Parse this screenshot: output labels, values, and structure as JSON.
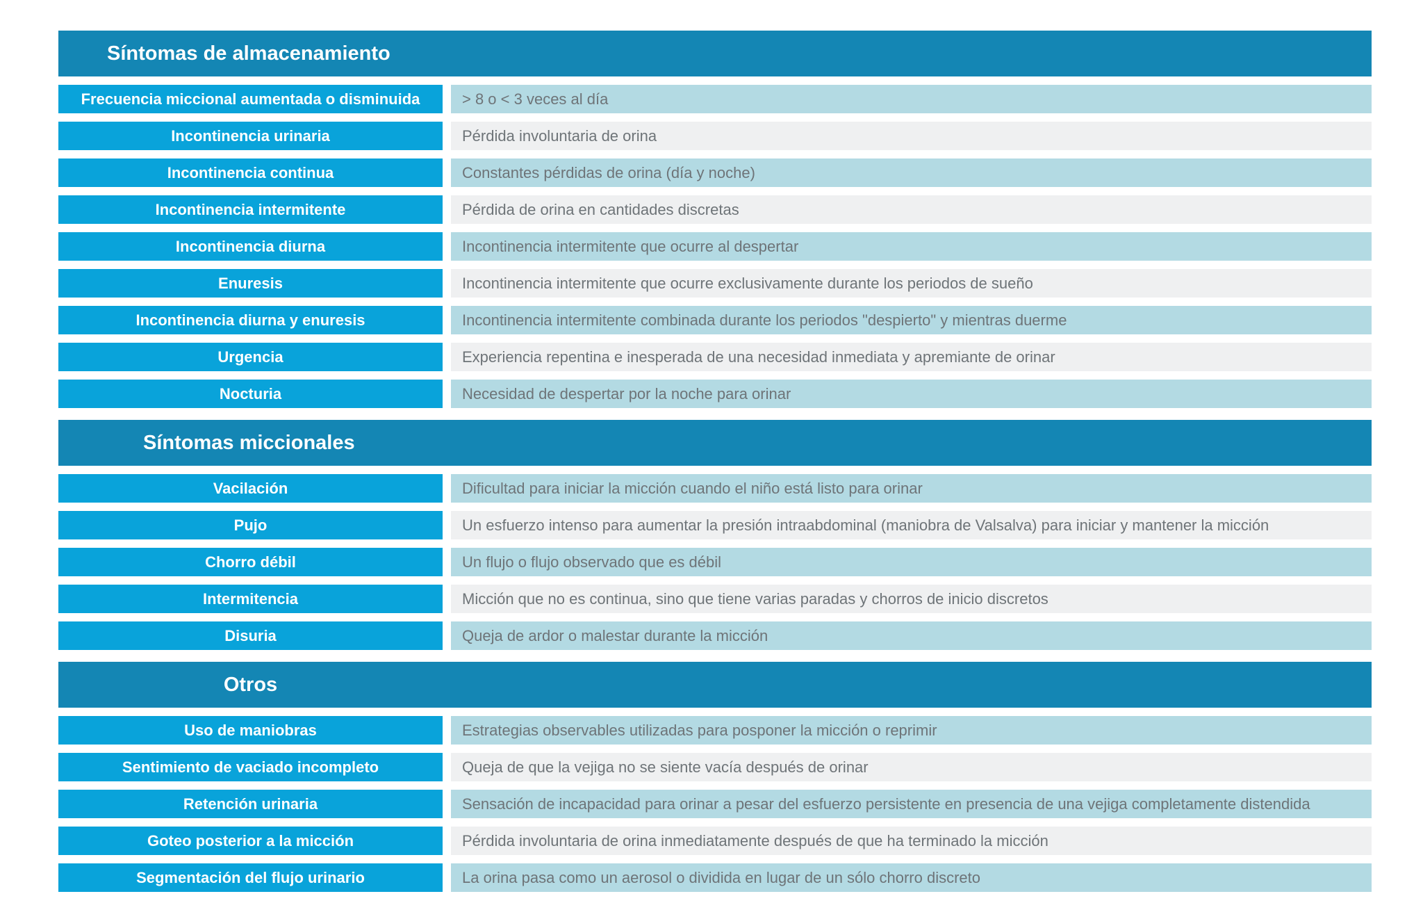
{
  "sections": [
    {
      "title": "Síntomas de almacenamiento",
      "rows": [
        {
          "term": "Frecuencia miccional aumentada o disminuida",
          "definition": "> 8 o < 3 veces al día"
        },
        {
          "term": "Incontinencia urinaria",
          "definition": "Pérdida involuntaria de orina"
        },
        {
          "term": "Incontinencia continua",
          "definition": "Constantes pérdidas de orina (día y noche)"
        },
        {
          "term": "Incontinencia intermitente",
          "definition": "Pérdida de orina en cantidades discretas"
        },
        {
          "term": "Incontinencia diurna",
          "definition": "Incontinencia intermitente que ocurre al despertar"
        },
        {
          "term": "Enuresis",
          "definition": "Incontinencia intermitente que ocurre exclusivamente durante los periodos de sueño"
        },
        {
          "term": "Incontinencia diurna y enuresis",
          "definition": "Incontinencia intermitente combinada durante los periodos \"despierto\" y mientras duerme"
        },
        {
          "term": "Urgencia",
          "definition": "Experiencia repentina e inesperada de una necesidad inmediata y apremiante de orinar"
        },
        {
          "term": "Nocturia",
          "definition": "Necesidad de despertar por la noche para orinar"
        }
      ]
    },
    {
      "title": "Síntomas miccionales",
      "rows": [
        {
          "term": "Vacilación",
          "definition": "Dificultad para iniciar la micción cuando el niño está listo para orinar"
        },
        {
          "term": "Pujo",
          "definition": "Un esfuerzo intenso para aumentar la presión intraabdominal (maniobra de Valsalva) para iniciar y mantener la micción"
        },
        {
          "term": "Chorro débil",
          "definition": "Un flujo o flujo observado que es débil"
        },
        {
          "term": "Intermitencia",
          "definition": "Micción que no es continua, sino que tiene varias paradas y chorros de inicio discretos"
        },
        {
          "term": "Disuria",
          "definition": "Queja de ardor o malestar durante la micción"
        }
      ]
    },
    {
      "title": "Otros",
      "rows": [
        {
          "term": "Uso de maniobras",
          "definition": "Estrategias observables utilizadas para posponer la micción o reprimir"
        },
        {
          "term": "Sentimiento de vaciado incompleto",
          "definition": "Queja de que la vejiga no se siente vacía después de orinar"
        },
        {
          "term": "Retención urinaria",
          "definition": "Sensación de incapacidad para orinar a pesar del esfuerzo persistente en presencia de una vejiga completamente distendida"
        },
        {
          "term": "Goteo posterior a la micción",
          "definition": "Pérdida involuntaria de orina inmediatamente después de que ha terminado la micción"
        },
        {
          "term": "Segmentación del flujo urinario",
          "definition": "La orina pasa como un aerosol o dividida en lugar de un sólo chorro discreto"
        }
      ]
    }
  ]
}
